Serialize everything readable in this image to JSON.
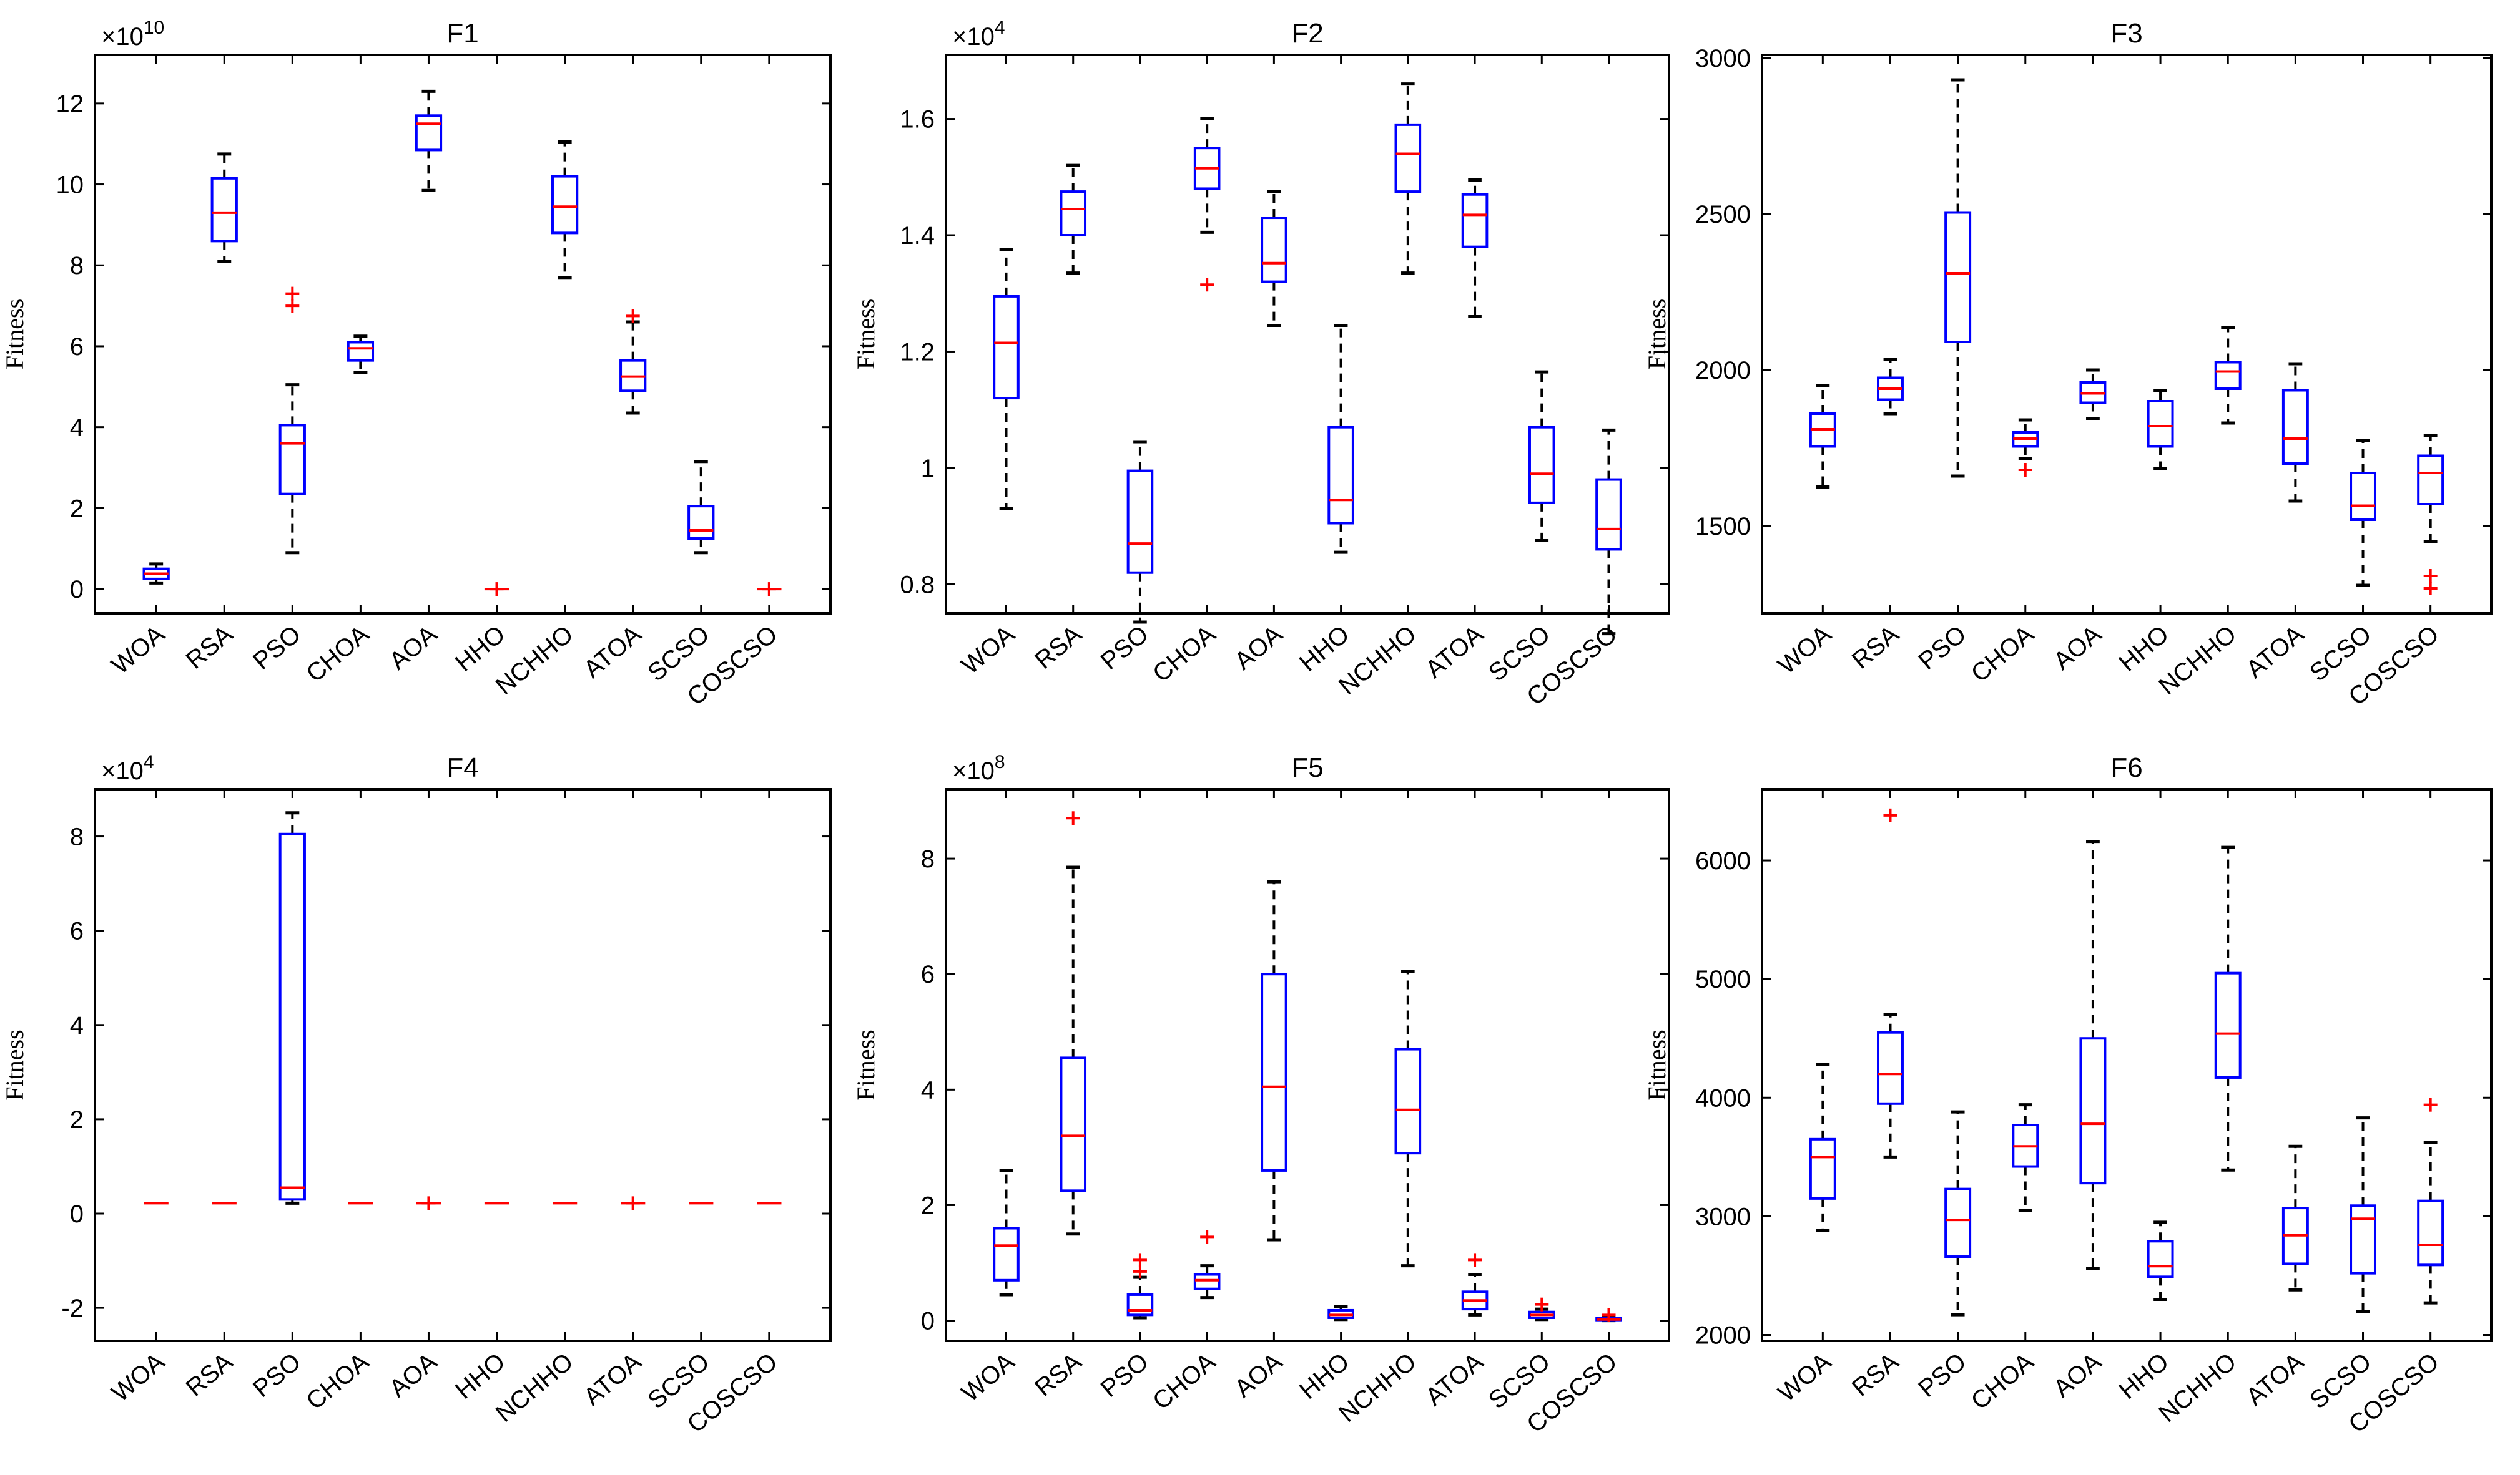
{
  "chart_data": [
    {
      "type": "boxplot",
      "title": "F1",
      "xlabel": "",
      "ylabel": "Fitness",
      "exponent": "10",
      "ylim": [
        -0.6,
        13.2
      ],
      "yticks": [
        0,
        2,
        4,
        6,
        8,
        10,
        12
      ],
      "ytick_labels": [
        "0",
        "2",
        "4",
        "6",
        "8",
        "10",
        "12"
      ],
      "categories": [
        "WOA",
        "RSA",
        "PSO",
        "CHOA",
        "AOA",
        "HHO",
        "NCHHO",
        "ATOA",
        "SCSO",
        "COSCSO"
      ],
      "boxes": [
        {
          "min": 0.15,
          "q1": 0.25,
          "median": 0.38,
          "q3": 0.5,
          "max": 0.62,
          "outliers": []
        },
        {
          "min": 8.1,
          "q1": 8.6,
          "median": 9.3,
          "q3": 10.15,
          "max": 10.75,
          "outliers": []
        },
        {
          "min": 0.9,
          "q1": 2.35,
          "median": 3.6,
          "q3": 4.05,
          "max": 5.05,
          "outliers": [
            7.0,
            7.3
          ]
        },
        {
          "min": 5.35,
          "q1": 5.65,
          "median": 5.95,
          "q3": 6.1,
          "max": 6.25,
          "outliers": []
        },
        {
          "min": 9.85,
          "q1": 10.85,
          "median": 11.5,
          "q3": 11.7,
          "max": 12.3,
          "outliers": []
        },
        {
          "min": 0.0,
          "q1": 0.0,
          "median": 0.0,
          "q3": 0.0,
          "max": 0.0,
          "outliers": [
            0.0
          ]
        },
        {
          "min": 7.7,
          "q1": 8.8,
          "median": 9.45,
          "q3": 10.2,
          "max": 11.05,
          "outliers": []
        },
        {
          "min": 4.35,
          "q1": 4.9,
          "median": 5.25,
          "q3": 5.65,
          "max": 6.6,
          "outliers": [
            6.75
          ]
        },
        {
          "min": 0.9,
          "q1": 1.25,
          "median": 1.45,
          "q3": 2.05,
          "max": 3.15,
          "outliers": []
        },
        {
          "min": 0.0,
          "q1": 0.0,
          "median": 0.0,
          "q3": 0.0,
          "max": 0.0,
          "outliers": [
            0.0
          ]
        }
      ]
    },
    {
      "type": "boxplot",
      "title": "F2",
      "xlabel": "",
      "ylabel": "Fitness",
      "exponent": "4",
      "ylim": [
        0.75,
        1.71
      ],
      "yticks": [
        0.8,
        1.0,
        1.2,
        1.4,
        1.6
      ],
      "ytick_labels": [
        "0.8",
        "1",
        "1.2",
        "1.4",
        "1.6"
      ],
      "categories": [
        "WOA",
        "RSA",
        "PSO",
        "CHOA",
        "AOA",
        "HHO",
        "NCHHO",
        "ATOA",
        "SCSO",
        "COSCSO"
      ],
      "boxes": [
        {
          "min": 0.93,
          "q1": 1.12,
          "median": 1.215,
          "q3": 1.295,
          "max": 1.375,
          "outliers": []
        },
        {
          "min": 1.335,
          "q1": 1.4,
          "median": 1.445,
          "q3": 1.475,
          "max": 1.52,
          "outliers": []
        },
        {
          "min": 0.735,
          "q1": 0.82,
          "median": 0.87,
          "q3": 0.995,
          "max": 1.045,
          "outliers": []
        },
        {
          "min": 1.405,
          "q1": 1.48,
          "median": 1.515,
          "q3": 1.55,
          "max": 1.6,
          "outliers": [
            1.315
          ]
        },
        {
          "min": 1.245,
          "q1": 1.32,
          "median": 1.352,
          "q3": 1.43,
          "max": 1.475,
          "outliers": []
        },
        {
          "min": 0.855,
          "q1": 0.905,
          "median": 0.945,
          "q3": 1.07,
          "max": 1.245,
          "outliers": []
        },
        {
          "min": 1.335,
          "q1": 1.475,
          "median": 1.54,
          "q3": 1.59,
          "max": 1.66,
          "outliers": []
        },
        {
          "min": 1.26,
          "q1": 1.38,
          "median": 1.435,
          "q3": 1.47,
          "max": 1.495,
          "outliers": []
        },
        {
          "min": 0.875,
          "q1": 0.94,
          "median": 0.99,
          "q3": 1.07,
          "max": 1.165,
          "outliers": []
        },
        {
          "min": 0.715,
          "q1": 0.86,
          "median": 0.895,
          "q3": 0.98,
          "max": 1.065,
          "outliers": []
        }
      ]
    },
    {
      "type": "boxplot",
      "title": "F3",
      "xlabel": "",
      "ylabel": "Fitness",
      "exponent": "",
      "ylim": [
        1220,
        3010
      ],
      "yticks": [
        1500,
        2000,
        2500,
        3000
      ],
      "ytick_labels": [
        "1500",
        "2000",
        "2500",
        "3000"
      ],
      "categories": [
        "WOA",
        "RSA",
        "PSO",
        "CHOA",
        "AOA",
        "HHO",
        "NCHHO",
        "ATOA",
        "SCSO",
        "COSCSO"
      ],
      "boxes": [
        {
          "min": 1625,
          "q1": 1755,
          "median": 1810,
          "q3": 1860,
          "max": 1950,
          "outliers": []
        },
        {
          "min": 1860,
          "q1": 1905,
          "median": 1940,
          "q3": 1975,
          "max": 2035,
          "outliers": []
        },
        {
          "min": 1660,
          "q1": 2090,
          "median": 2310,
          "q3": 2505,
          "max": 2930,
          "outliers": []
        },
        {
          "min": 1715,
          "q1": 1755,
          "median": 1780,
          "q3": 1800,
          "max": 1840,
          "outliers": [
            1680
          ]
        },
        {
          "min": 1845,
          "q1": 1895,
          "median": 1925,
          "q3": 1960,
          "max": 2000,
          "outliers": []
        },
        {
          "min": 1685,
          "q1": 1755,
          "median": 1820,
          "q3": 1900,
          "max": 1935,
          "outliers": []
        },
        {
          "min": 1830,
          "q1": 1940,
          "median": 1995,
          "q3": 2025,
          "max": 2135,
          "outliers": []
        },
        {
          "min": 1580,
          "q1": 1700,
          "median": 1780,
          "q3": 1935,
          "max": 2020,
          "outliers": []
        },
        {
          "min": 1310,
          "q1": 1520,
          "median": 1565,
          "q3": 1670,
          "max": 1775,
          "outliers": []
        },
        {
          "min": 1450,
          "q1": 1570,
          "median": 1670,
          "q3": 1725,
          "max": 1790,
          "outliers": [
            1300,
            1340
          ]
        }
      ]
    },
    {
      "type": "boxplot",
      "title": "F4",
      "xlabel": "",
      "ylabel": "Fitness",
      "exponent": "4",
      "ylim": [
        -2.7,
        9.0
      ],
      "yticks": [
        -2,
        0,
        2,
        4,
        6,
        8
      ],
      "ytick_labels": [
        "-2",
        "0",
        "2",
        "4",
        "6",
        "8"
      ],
      "categories": [
        "WOA",
        "RSA",
        "PSO",
        "CHOA",
        "AOA",
        "HHO",
        "NCHHO",
        "ATOA",
        "SCSO",
        "COSCSO"
      ],
      "boxes": [
        {
          "min": 0.22,
          "q1": 0.22,
          "median": 0.22,
          "q3": 0.22,
          "max": 0.22,
          "outliers": []
        },
        {
          "min": 0.22,
          "q1": 0.22,
          "median": 0.22,
          "q3": 0.22,
          "max": 0.22,
          "outliers": []
        },
        {
          "min": 0.22,
          "q1": 0.3,
          "median": 0.55,
          "q3": 8.05,
          "max": 8.5,
          "outliers": []
        },
        {
          "min": 0.22,
          "q1": 0.22,
          "median": 0.22,
          "q3": 0.22,
          "max": 0.22,
          "outliers": []
        },
        {
          "min": 0.22,
          "q1": 0.22,
          "median": 0.22,
          "q3": 0.22,
          "max": 0.22,
          "outliers": [
            0.22
          ]
        },
        {
          "min": 0.22,
          "q1": 0.22,
          "median": 0.22,
          "q3": 0.22,
          "max": 0.22,
          "outliers": []
        },
        {
          "min": 0.22,
          "q1": 0.22,
          "median": 0.22,
          "q3": 0.22,
          "max": 0.22,
          "outliers": []
        },
        {
          "min": 0.22,
          "q1": 0.22,
          "median": 0.22,
          "q3": 0.22,
          "max": 0.22,
          "outliers": [
            0.22
          ]
        },
        {
          "min": 0.22,
          "q1": 0.22,
          "median": 0.22,
          "q3": 0.22,
          "max": 0.22,
          "outliers": []
        },
        {
          "min": 0.22,
          "q1": 0.22,
          "median": 0.22,
          "q3": 0.22,
          "max": 0.22,
          "outliers": []
        }
      ]
    },
    {
      "type": "boxplot",
      "title": "F5",
      "xlabel": "",
      "ylabel": "Fitness",
      "exponent": "8",
      "ylim": [
        -0.35,
        9.2
      ],
      "yticks": [
        0,
        2,
        4,
        6,
        8
      ],
      "ytick_labels": [
        "0",
        "2",
        "4",
        "6",
        "8"
      ],
      "categories": [
        "WOA",
        "RSA",
        "PSO",
        "CHOA",
        "AOA",
        "HHO",
        "NCHHO",
        "ATOA",
        "SCSO",
        "COSCSO"
      ],
      "boxes": [
        {
          "min": 0.45,
          "q1": 0.7,
          "median": 1.3,
          "q3": 1.6,
          "max": 2.6,
          "outliers": []
        },
        {
          "min": 1.5,
          "q1": 2.25,
          "median": 3.2,
          "q3": 4.55,
          "max": 7.85,
          "outliers": [
            8.7
          ]
        },
        {
          "min": 0.05,
          "q1": 0.1,
          "median": 0.18,
          "q3": 0.45,
          "max": 0.75,
          "outliers": [
            0.85,
            1.05
          ]
        },
        {
          "min": 0.4,
          "q1": 0.55,
          "median": 0.7,
          "q3": 0.8,
          "max": 0.95,
          "outliers": [
            1.45
          ]
        },
        {
          "min": 1.4,
          "q1": 2.6,
          "median": 4.05,
          "q3": 6.0,
          "max": 7.6,
          "outliers": []
        },
        {
          "min": 0.02,
          "q1": 0.05,
          "median": 0.1,
          "q3": 0.18,
          "max": 0.25,
          "outliers": []
        },
        {
          "min": 0.95,
          "q1": 2.9,
          "median": 3.65,
          "q3": 4.7,
          "max": 6.05,
          "outliers": []
        },
        {
          "min": 0.1,
          "q1": 0.2,
          "median": 0.35,
          "q3": 0.5,
          "max": 0.8,
          "outliers": [
            1.05
          ]
        },
        {
          "min": 0.02,
          "q1": 0.05,
          "median": 0.1,
          "q3": 0.15,
          "max": 0.2,
          "outliers": [
            0.28
          ]
        },
        {
          "min": 0.0,
          "q1": 0.01,
          "median": 0.02,
          "q3": 0.04,
          "max": 0.07,
          "outliers": [
            0.1
          ]
        }
      ]
    },
    {
      "type": "boxplot",
      "title": "F6",
      "xlabel": "",
      "ylabel": "Fitness",
      "exponent": "",
      "ylim": [
        1950,
        6600
      ],
      "yticks": [
        2000,
        3000,
        4000,
        5000,
        6000
      ],
      "ytick_labels": [
        "2000",
        "3000",
        "4000",
        "5000",
        "6000"
      ],
      "categories": [
        "WOA",
        "RSA",
        "PSO",
        "CHOA",
        "AOA",
        "HHO",
        "NCHHO",
        "ATOA",
        "SCSO",
        "COSCSO"
      ],
      "boxes": [
        {
          "min": 2880,
          "q1": 3150,
          "median": 3500,
          "q3": 3650,
          "max": 4280,
          "outliers": []
        },
        {
          "min": 3500,
          "q1": 3950,
          "median": 4200,
          "q3": 4550,
          "max": 4700,
          "outliers": [
            6380
          ]
        },
        {
          "min": 2170,
          "q1": 2660,
          "median": 2970,
          "q3": 3230,
          "max": 3880,
          "outliers": []
        },
        {
          "min": 3050,
          "q1": 3420,
          "median": 3590,
          "q3": 3770,
          "max": 3940,
          "outliers": []
        },
        {
          "min": 2560,
          "q1": 3280,
          "median": 3780,
          "q3": 4500,
          "max": 6160,
          "outliers": []
        },
        {
          "min": 2300,
          "q1": 2490,
          "median": 2580,
          "q3": 2790,
          "max": 2950,
          "outliers": []
        },
        {
          "min": 3390,
          "q1": 4170,
          "median": 4540,
          "q3": 5050,
          "max": 6110,
          "outliers": []
        },
        {
          "min": 2380,
          "q1": 2600,
          "median": 2840,
          "q3": 3070,
          "max": 3590,
          "outliers": []
        },
        {
          "min": 2200,
          "q1": 2520,
          "median": 2980,
          "q3": 3090,
          "max": 3830,
          "outliers": []
        },
        {
          "min": 2270,
          "q1": 2590,
          "median": 2760,
          "q3": 3130,
          "max": 3620,
          "outliers": [
            3940
          ]
        }
      ]
    }
  ],
  "styles": {
    "box_color": "#0000ff",
    "median_color": "#ff0000",
    "whisker_color": "#000000",
    "outlier_color": "#ff0000",
    "outlier_marker": "+",
    "axis_color": "#000000"
  }
}
